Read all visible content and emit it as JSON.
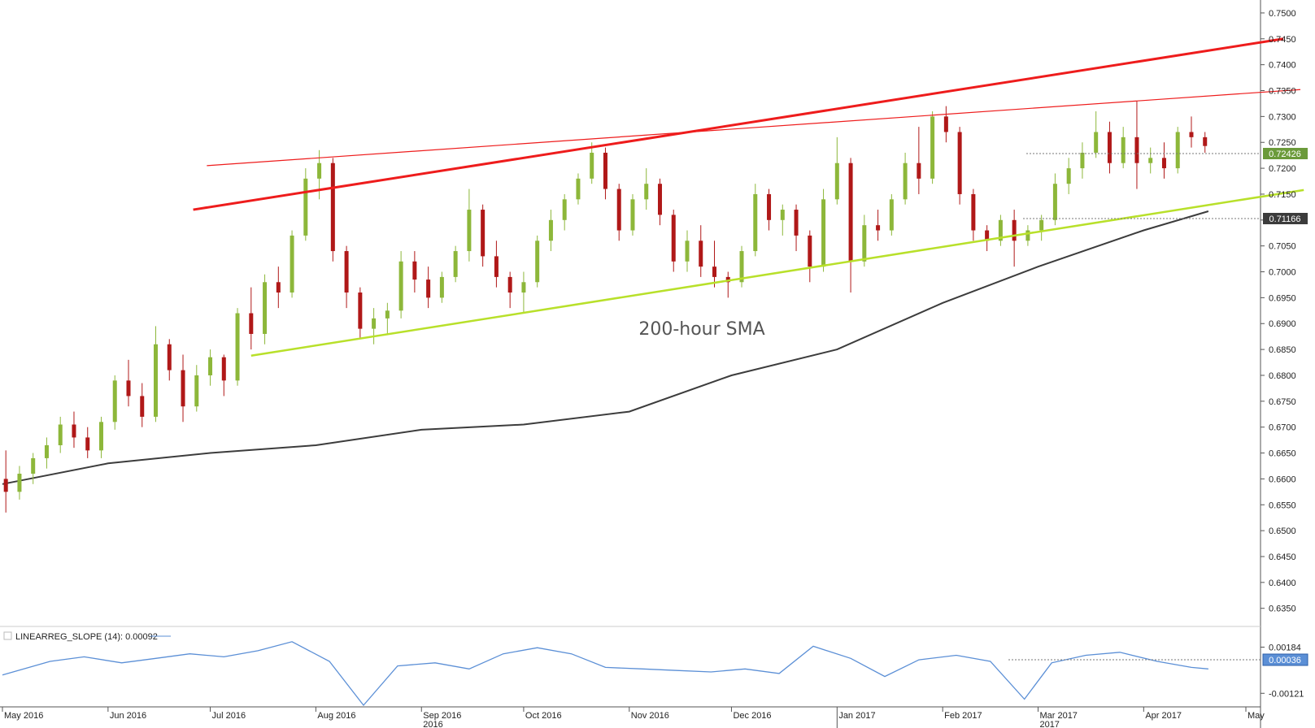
{
  "chart_data": {
    "type": "candlestick",
    "instrument_hint": "",
    "main_panel": {
      "ylim": [
        0.6315,
        0.7525
      ],
      "y_ticks": [
        "0.7500",
        "0.7450",
        "0.7400",
        "0.7350",
        "0.7300",
        "0.7250",
        "0.7200",
        "0.7150",
        "0.7100",
        "0.7050",
        "0.7000",
        "0.6950",
        "0.6900",
        "0.6850",
        "0.6800",
        "0.6750",
        "0.6700",
        "0.6650",
        "0.6600",
        "0.6550",
        "0.6500",
        "0.6450",
        "0.6400",
        "0.6350"
      ],
      "current_price_label": "0.72426",
      "current_price": 0.72426,
      "sma_value_label": "0.71166",
      "sma_value": 0.71166,
      "annotation": "200-hour SMA",
      "candles": {
        "columns": [
          "date",
          "open",
          "high",
          "low",
          "close"
        ],
        "rows": [
          [
            "2016-05-02",
            0.66,
            0.6655,
            0.6535,
            0.6575
          ],
          [
            "2016-05-06",
            0.6575,
            0.6625,
            0.656,
            0.661
          ],
          [
            "2016-05-10",
            0.661,
            0.665,
            0.659,
            0.664
          ],
          [
            "2016-05-14",
            0.664,
            0.668,
            0.662,
            0.6665
          ],
          [
            "2016-05-18",
            0.6665,
            0.672,
            0.665,
            0.6705
          ],
          [
            "2016-05-22",
            0.6705,
            0.673,
            0.666,
            0.668
          ],
          [
            "2016-05-26",
            0.668,
            0.67,
            0.664,
            0.6655
          ],
          [
            "2016-05-30",
            0.6655,
            0.672,
            0.664,
            0.671
          ],
          [
            "2016-06-03",
            0.671,
            0.68,
            0.6695,
            0.679
          ],
          [
            "2016-06-07",
            0.679,
            0.683,
            0.674,
            0.676
          ],
          [
            "2016-06-11",
            0.676,
            0.6785,
            0.67,
            0.672
          ],
          [
            "2016-06-15",
            0.672,
            0.6895,
            0.671,
            0.686
          ],
          [
            "2016-06-19",
            0.686,
            0.687,
            0.679,
            0.681
          ],
          [
            "2016-06-23",
            0.681,
            0.684,
            0.671,
            0.674
          ],
          [
            "2016-06-27",
            0.674,
            0.682,
            0.673,
            0.68
          ],
          [
            "2016-07-01",
            0.68,
            0.685,
            0.678,
            0.6835
          ],
          [
            "2016-07-05",
            0.6835,
            0.684,
            0.676,
            0.679
          ],
          [
            "2016-07-09",
            0.679,
            0.693,
            0.678,
            0.692
          ],
          [
            "2016-07-13",
            0.692,
            0.697,
            0.685,
            0.688
          ],
          [
            "2016-07-17",
            0.688,
            0.6995,
            0.686,
            0.698
          ],
          [
            "2016-07-21",
            0.698,
            0.701,
            0.693,
            0.696
          ],
          [
            "2016-07-25",
            0.696,
            0.708,
            0.695,
            0.707
          ],
          [
            "2016-07-29",
            0.707,
            0.72,
            0.706,
            0.718
          ],
          [
            "2016-08-02",
            0.718,
            0.7235,
            0.714,
            0.721
          ],
          [
            "2016-08-06",
            0.721,
            0.722,
            0.702,
            0.704
          ],
          [
            "2016-08-10",
            0.704,
            0.705,
            0.693,
            0.696
          ],
          [
            "2016-08-14",
            0.696,
            0.697,
            0.687,
            0.689
          ],
          [
            "2016-08-18",
            0.689,
            0.693,
            0.686,
            0.691
          ],
          [
            "2016-08-22",
            0.691,
            0.694,
            0.688,
            0.6925
          ],
          [
            "2016-08-26",
            0.6925,
            0.704,
            0.691,
            0.702
          ],
          [
            "2016-08-30",
            0.702,
            0.704,
            0.696,
            0.6985
          ],
          [
            "2016-09-03",
            0.6985,
            0.701,
            0.693,
            0.695
          ],
          [
            "2016-09-07",
            0.695,
            0.7,
            0.694,
            0.699
          ],
          [
            "2016-09-11",
            0.699,
            0.705,
            0.698,
            0.704
          ],
          [
            "2016-09-15",
            0.704,
            0.716,
            0.702,
            0.712
          ],
          [
            "2016-09-19",
            0.712,
            0.713,
            0.701,
            0.703
          ],
          [
            "2016-09-23",
            0.703,
            0.706,
            0.697,
            0.699
          ],
          [
            "2016-09-27",
            0.699,
            0.7,
            0.693,
            0.696
          ],
          [
            "2016-10-01",
            0.696,
            0.7,
            0.692,
            0.698
          ],
          [
            "2016-10-05",
            0.698,
            0.707,
            0.697,
            0.706
          ],
          [
            "2016-10-09",
            0.706,
            0.712,
            0.704,
            0.71
          ],
          [
            "2016-10-13",
            0.71,
            0.715,
            0.708,
            0.714
          ],
          [
            "2016-10-17",
            0.714,
            0.719,
            0.713,
            0.718
          ],
          [
            "2016-10-21",
            0.718,
            0.725,
            0.717,
            0.723
          ],
          [
            "2016-10-25",
            0.723,
            0.724,
            0.714,
            0.716
          ],
          [
            "2016-10-29",
            0.716,
            0.717,
            0.706,
            0.708
          ],
          [
            "2016-11-02",
            0.708,
            0.715,
            0.707,
            0.714
          ],
          [
            "2016-11-06",
            0.714,
            0.72,
            0.712,
            0.717
          ],
          [
            "2016-11-10",
            0.717,
            0.718,
            0.709,
            0.711
          ],
          [
            "2016-11-14",
            0.711,
            0.712,
            0.7,
            0.702
          ],
          [
            "2016-11-18",
            0.702,
            0.708,
            0.7,
            0.706
          ],
          [
            "2016-11-22",
            0.706,
            0.709,
            0.699,
            0.701
          ],
          [
            "2016-11-26",
            0.701,
            0.706,
            0.697,
            0.699
          ],
          [
            "2016-11-30",
            0.699,
            0.7,
            0.695,
            0.698
          ],
          [
            "2016-12-04",
            0.698,
            0.705,
            0.697,
            0.704
          ],
          [
            "2016-12-08",
            0.704,
            0.717,
            0.703,
            0.715
          ],
          [
            "2016-12-12",
            0.715,
            0.716,
            0.708,
            0.71
          ],
          [
            "2016-12-16",
            0.71,
            0.713,
            0.707,
            0.712
          ],
          [
            "2016-12-20",
            0.712,
            0.713,
            0.704,
            0.707
          ],
          [
            "2016-12-24",
            0.707,
            0.708,
            0.698,
            0.701
          ],
          [
            "2016-12-28",
            0.701,
            0.716,
            0.7,
            0.714
          ],
          [
            "2017-01-01",
            0.714,
            0.726,
            0.713,
            0.721
          ],
          [
            "2017-01-05",
            0.721,
            0.722,
            0.696,
            0.702
          ],
          [
            "2017-01-09",
            0.702,
            0.711,
            0.701,
            0.709
          ],
          [
            "2017-01-13",
            0.709,
            0.712,
            0.706,
            0.708
          ],
          [
            "2017-01-17",
            0.708,
            0.715,
            0.707,
            0.714
          ],
          [
            "2017-01-21",
            0.714,
            0.723,
            0.713,
            0.721
          ],
          [
            "2017-01-25",
            0.721,
            0.728,
            0.715,
            0.718
          ],
          [
            "2017-01-29",
            0.718,
            0.731,
            0.717,
            0.73
          ],
          [
            "2017-02-02",
            0.73,
            0.732,
            0.725,
            0.727
          ],
          [
            "2017-02-06",
            0.727,
            0.728,
            0.713,
            0.715
          ],
          [
            "2017-02-10",
            0.715,
            0.716,
            0.706,
            0.708
          ],
          [
            "2017-02-14",
            0.708,
            0.709,
            0.704,
            0.706
          ],
          [
            "2017-02-18",
            0.706,
            0.711,
            0.705,
            0.71
          ],
          [
            "2017-02-22",
            0.71,
            0.712,
            0.701,
            0.706
          ],
          [
            "2017-02-26",
            0.706,
            0.709,
            0.705,
            0.708
          ],
          [
            "2017-03-02",
            0.708,
            0.711,
            0.706,
            0.71
          ],
          [
            "2017-03-06",
            0.71,
            0.719,
            0.709,
            0.717
          ],
          [
            "2017-03-10",
            0.717,
            0.722,
            0.715,
            0.72
          ],
          [
            "2017-03-14",
            0.72,
            0.725,
            0.718,
            0.723
          ],
          [
            "2017-03-18",
            0.723,
            0.731,
            0.722,
            0.727
          ],
          [
            "2017-03-22",
            0.727,
            0.729,
            0.719,
            0.721
          ],
          [
            "2017-03-26",
            0.721,
            0.728,
            0.72,
            0.726
          ],
          [
            "2017-03-30",
            0.726,
            0.733,
            0.716,
            0.721
          ],
          [
            "2017-04-03",
            0.721,
            0.724,
            0.719,
            0.722
          ],
          [
            "2017-04-07",
            0.722,
            0.725,
            0.718,
            0.72
          ],
          [
            "2017-04-11",
            0.72,
            0.728,
            0.719,
            0.727
          ],
          [
            "2017-04-15",
            0.727,
            0.73,
            0.724,
            0.726
          ],
          [
            "2017-04-19",
            0.726,
            0.727,
            0.723,
            0.7243
          ]
        ]
      },
      "sma_200": {
        "name": "200-hour SMA",
        "x": [
          "2016-05-01",
          "2016-06-01",
          "2016-07-01",
          "2016-08-01",
          "2016-09-01",
          "2016-10-01",
          "2016-11-01",
          "2016-12-01",
          "2017-01-01",
          "2017-02-01",
          "2017-03-01",
          "2017-04-01",
          "2017-04-20"
        ],
        "y": [
          0.659,
          0.663,
          0.665,
          0.6665,
          0.6695,
          0.6705,
          0.673,
          0.68,
          0.685,
          0.694,
          0.701,
          0.708,
          0.7117
        ]
      },
      "trendlines": [
        {
          "style": "thick-red",
          "x": [
            "2016-06-26",
            "2017-05-12"
          ],
          "y": [
            0.712,
            0.745
          ]
        },
        {
          "style": "thin-red",
          "x": [
            "2016-06-30",
            "2017-05-17"
          ],
          "y": [
            0.7205,
            0.7352
          ]
        },
        {
          "style": "green",
          "x": [
            "2016-07-13",
            "2017-05-18"
          ],
          "y": [
            0.6838,
            0.7158
          ]
        }
      ]
    },
    "indicator_panel": {
      "label": "LINEARREG_SLOPE (14): 0.00092",
      "y_ticks": [
        "0.00184",
        "-0.00121"
      ],
      "ylim": [
        -0.002,
        0.0031
      ],
      "current_value_label": "0.00036",
      "current_value": 0.00036,
      "line": {
        "x": [
          "2016-05-01",
          "2016-05-15",
          "2016-05-25",
          "2016-06-05",
          "2016-06-15",
          "2016-06-25",
          "2016-07-05",
          "2016-07-15",
          "2016-07-25",
          "2016-08-05",
          "2016-08-15",
          "2016-08-25",
          "2016-09-05",
          "2016-09-15",
          "2016-09-25",
          "2016-10-05",
          "2016-10-15",
          "2016-10-25",
          "2016-11-05",
          "2016-11-15",
          "2016-11-25",
          "2016-12-05",
          "2016-12-15",
          "2016-12-25",
          "2017-01-05",
          "2017-01-15",
          "2017-01-25",
          "2017-02-05",
          "2017-02-15",
          "2017-02-25",
          "2017-03-05",
          "2017-03-15",
          "2017-03-25",
          "2017-04-05",
          "2017-04-15",
          "2017-04-20"
        ],
        "y": [
          0.0,
          0.0009,
          0.0012,
          0.0008,
          0.0011,
          0.0014,
          0.0012,
          0.0016,
          0.0022,
          0.0009,
          -0.002,
          0.0006,
          0.0008,
          0.0004,
          0.0014,
          0.0018,
          0.0014,
          0.0005,
          0.0004,
          0.0003,
          0.0002,
          0.0004,
          0.0001,
          0.0019,
          0.0011,
          -0.0001,
          0.001,
          0.0013,
          0.0009,
          -0.0016,
          0.0008,
          0.0013,
          0.0015,
          0.0009,
          0.0005,
          0.0004
        ]
      }
    },
    "x_axis": {
      "month_labels": [
        "May 2016",
        "Jun 2016",
        "Jul 2016",
        "Aug 2016",
        "Sep 2016",
        "Oct 2016",
        "Nov 2016",
        "Dec 2016",
        "Jan 2017",
        "Feb 2017",
        "Mar 2017",
        "Apr 2017",
        "May"
      ],
      "year_labels": [
        "2016",
        "2017"
      ]
    }
  },
  "colors": {
    "bull": "#8db73a",
    "bear": "#b01818",
    "trend_red": "#ee1c1c",
    "trend_green": "#b8e02a",
    "sma": "#3c3c3c",
    "indicator": "#5b8fd6",
    "price_badge": "#6b9a3a",
    "sma_badge": "#3c3c3c",
    "ind_badge": "#5b8fd6"
  }
}
